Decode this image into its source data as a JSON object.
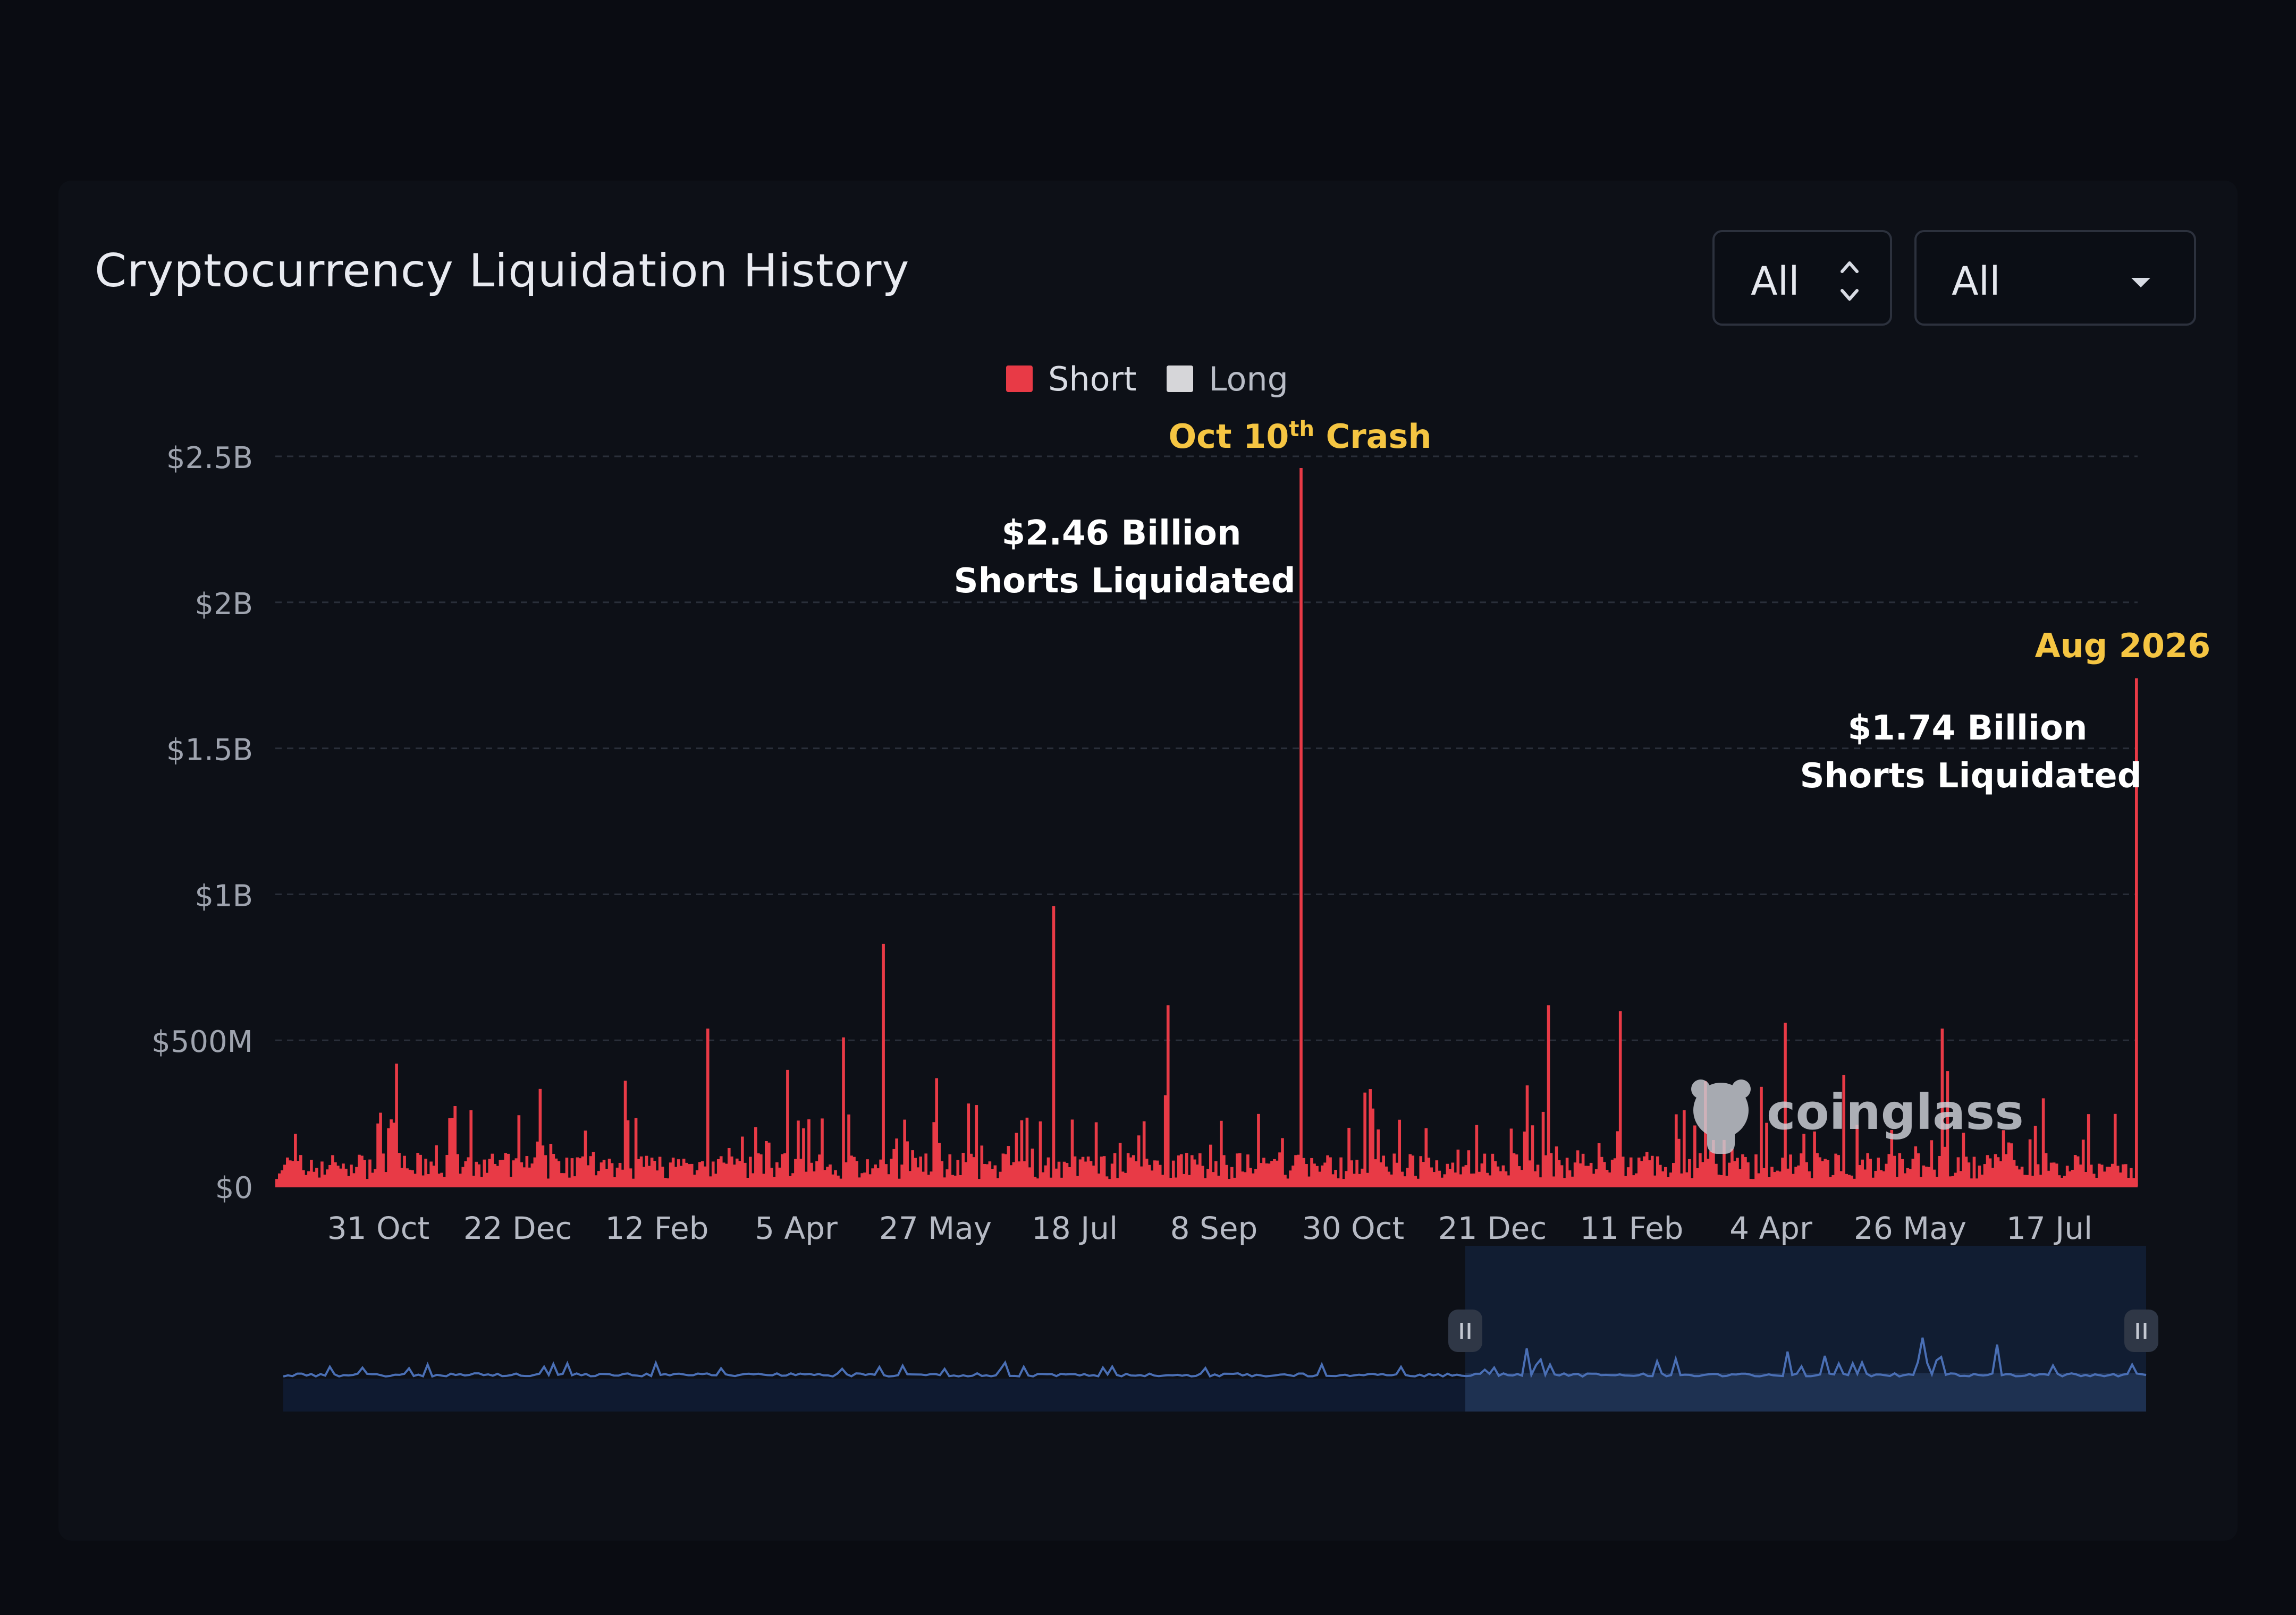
{
  "title": "Cryptocurrency Liquidation History",
  "controls": {
    "select1_value": "All",
    "select2_value": "All"
  },
  "legend": [
    {
      "label": "Short",
      "color": "#e83a46"
    },
    {
      "label": "Long",
      "color": "#d6d6d9"
    }
  ],
  "annotations": {
    "crash_title": "Oct 10",
    "crash_sup": "th",
    "crash_suffix": " Crash",
    "crash_value": "$2.46 Billion",
    "crash_desc": "Shorts Liquidated",
    "aug_title": "Aug 2026",
    "aug_value": "$1.74 Billion",
    "aug_desc": "Shorts Liquidated"
  },
  "watermark": "coinglass",
  "icons": {
    "select1_indicator": "chevron-updown-icon",
    "select2_indicator": "caret-down-icon",
    "watermark_logo": "coinglass-logo",
    "slider_handles": "drag-handle-icon"
  },
  "chart_data": {
    "type": "bar",
    "y_ticks": [
      "$0",
      "$500M",
      "$1B",
      "$1.5B",
      "$2B",
      "$2.5B"
    ],
    "y_tick_values": [
      0,
      500,
      1000,
      1500,
      2000,
      2500
    ],
    "y_unit": "USD millions",
    "ylim": [
      0,
      2500
    ],
    "x_ticks": [
      "31 Oct",
      "22 Dec",
      "12 Feb",
      "5 Apr",
      "27 May",
      "18 Jul",
      "8 Sep",
      "30 Oct",
      "21 Dec",
      "11 Feb",
      "4 Apr",
      "26 May",
      "17 Jul"
    ],
    "grid": true,
    "legend_position": "top-center",
    "series": [
      {
        "name": "Short",
        "color": "#e83a46",
        "note_values": "daily values mostly 20-250M (estimated baseline)",
        "peaks": [
          {
            "x": "31 Oct (yr1)",
            "value": 420
          },
          {
            "x": "12 Feb (yr1)",
            "value": 540
          },
          {
            "x": "5 Apr (yr1)",
            "value": 510
          },
          {
            "x": "27 May (yr1)",
            "value": 830
          },
          {
            "x": "18 Jul (yr1)",
            "value": 960
          },
          {
            "x": "8 Sep (yr1)",
            "value": 620
          },
          {
            "x": "Oct 10",
            "value": 2460
          },
          {
            "x": "11 Feb (yr2)",
            "value": 620
          },
          {
            "x": "4 Apr (yr2)",
            "value": 560
          },
          {
            "x": "26 May (yr2)",
            "value": 540
          },
          {
            "x": "Aug 2026",
            "value": 1740
          }
        ]
      },
      {
        "name": "Long",
        "color": "#d6d6d9",
        "values": []
      }
    ]
  }
}
